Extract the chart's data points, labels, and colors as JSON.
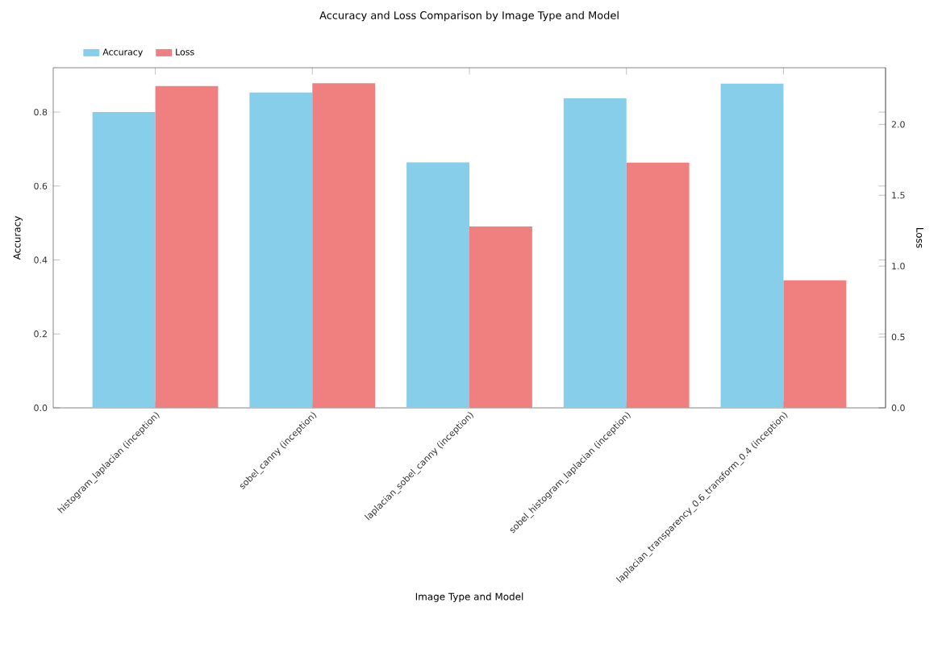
{
  "chart_data": {
    "type": "bar",
    "title": "Accuracy and Loss Comparison by Image Type and Model",
    "xlabel": "Image Type and Model",
    "ylabel": "Accuracy",
    "y2label": "Loss",
    "categories": [
      "histogram_laplacian (inception)",
      "sobel_canny (inception)",
      "laplacian_sobel_canny (inception)",
      "sobel_histogram_laplacian (inception)",
      "laplacian_transparency_0.6_transform_0.4 (inception)"
    ],
    "series": [
      {
        "name": "Accuracy",
        "color": "#87ceeb",
        "values": [
          0.8,
          0.853,
          0.664,
          0.837,
          0.877
        ]
      },
      {
        "name": "Loss",
        "color": "#f08080",
        "axis": "y2",
        "values": [
          2.27,
          2.29,
          1.28,
          1.73,
          0.9
        ]
      }
    ],
    "ylim": [
      0,
      0.92
    ],
    "yticks": [
      {
        "value": 0,
        "label": "0.0"
      },
      {
        "value": 0.2,
        "label": "0.2"
      },
      {
        "value": 0.4,
        "label": "0.4"
      },
      {
        "value": 0.6,
        "label": "0.6"
      },
      {
        "value": 0.8,
        "label": "0.8"
      }
    ],
    "y2lim": [
      0,
      2.4
    ],
    "y2ticks": [
      {
        "value": 0,
        "label": "0.0"
      },
      {
        "value": 0.5,
        "label": "0.5"
      },
      {
        "value": 1,
        "label": "1.0"
      },
      {
        "value": 1.5,
        "label": "1.5"
      },
      {
        "value": 2,
        "label": "2.0"
      }
    ],
    "legend": "top left",
    "grid": false
  }
}
